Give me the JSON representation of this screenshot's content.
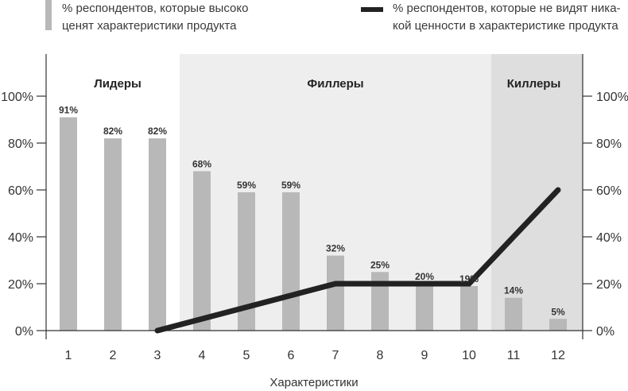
{
  "legend": {
    "bars": {
      "line1": "% респондентов, которые высоко",
      "line2": "ценят характеристики продукта",
      "color": "#b8b8b8"
    },
    "line": {
      "line1": "% респондентов, которые не видят ника-",
      "line2": "кой ценности в характеристике продукта",
      "color": "#222222"
    }
  },
  "zones": [
    {
      "label": "Лидеры",
      "from": 1,
      "to": 3,
      "color": "#ffffff"
    },
    {
      "label": "Филлеры",
      "from": 4,
      "to": 10,
      "color": "#eeeeee"
    },
    {
      "label": "Киллеры",
      "from": 11,
      "to": 12,
      "color": "#dedede"
    }
  ],
  "chart_data": {
    "type": "bar",
    "title": "",
    "xlabel": "Характеристики",
    "ylabel": "",
    "ylim": [
      0,
      100
    ],
    "yticks": [
      "0%",
      "20%",
      "40%",
      "60%",
      "80%",
      "100%"
    ],
    "categories": [
      "1",
      "2",
      "3",
      "4",
      "5",
      "6",
      "7",
      "8",
      "9",
      "10",
      "11",
      "12"
    ],
    "series": [
      {
        "name": "% респондентов, которые высоко ценят характеристики продукта",
        "type": "bar",
        "values": [
          91,
          82,
          82,
          68,
          59,
          59,
          32,
          25,
          20,
          19,
          14,
          5
        ],
        "labels": [
          "91%",
          "82%",
          "82%",
          "68%",
          "59%",
          "59%",
          "32%",
          "25%",
          "20%",
          "19%",
          "14%",
          "5%"
        ]
      },
      {
        "name": "% респондентов, которые не видят никакой ценности в характеристике продукта",
        "type": "line",
        "values": [
          null,
          null,
          0,
          5,
          10,
          15,
          20,
          20,
          20,
          20,
          40,
          60
        ]
      }
    ],
    "grid": false,
    "legend_position": "top",
    "secondary_y_axis": true
  }
}
